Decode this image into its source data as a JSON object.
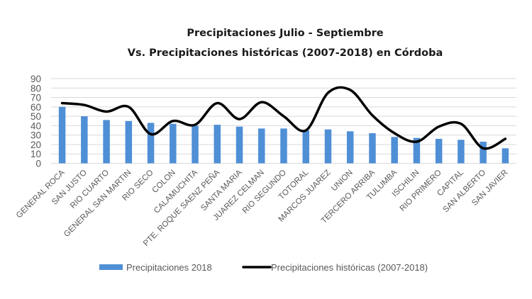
{
  "chart_data": {
    "type": "bar",
    "title": "Precipitaciones Julio - Septiembre",
    "subtitle": "Vs. Precipitaciones históricas (2007-2018) en Córdoba",
    "xlabel": "",
    "ylabel": "",
    "ylim": [
      0,
      90
    ],
    "yticks": [
      0,
      10,
      20,
      30,
      40,
      50,
      60,
      70,
      80,
      90
    ],
    "grid": true,
    "legend_position": "bottom",
    "categories": [
      "GENERAL ROCA",
      "SAN JUSTO",
      "RIO CUARTO",
      "GENERAL SAN MARTIN",
      "RIO SECO",
      "COLON",
      "CALAMUCHITA",
      "PTE. ROQUE SAENZ PEÑA",
      "SANTA MARIA",
      "JUAREZ CELMAN",
      "RIO SEGUNDO",
      "TOTORAL",
      "MARCOS JUAREZ",
      "UNION",
      "TERCERO ARRIBA",
      "TULUMBA",
      "ISCHILIN",
      "RIO PRIMERO",
      "CAPITAL",
      "SAN ALBERTO",
      "SAN JAVIER"
    ],
    "series": [
      {
        "name": "Precipitaciones 2018",
        "type": "bar",
        "color": "#4f8fd6",
        "values": [
          60,
          50,
          46,
          45,
          43,
          42,
          40,
          41,
          39,
          37,
          37,
          35,
          36,
          34,
          32,
          28,
          27,
          26,
          25,
          23,
          16
        ]
      },
      {
        "name": "Precipitaciones históricas (2007-2018)",
        "type": "line",
        "smooth": true,
        "color": "#000000",
        "values": [
          64,
          62,
          55,
          60,
          31,
          45,
          41,
          64,
          47,
          65,
          50,
          35,
          75,
          78,
          51,
          32,
          23,
          39,
          42,
          16,
          26
        ]
      }
    ]
  }
}
